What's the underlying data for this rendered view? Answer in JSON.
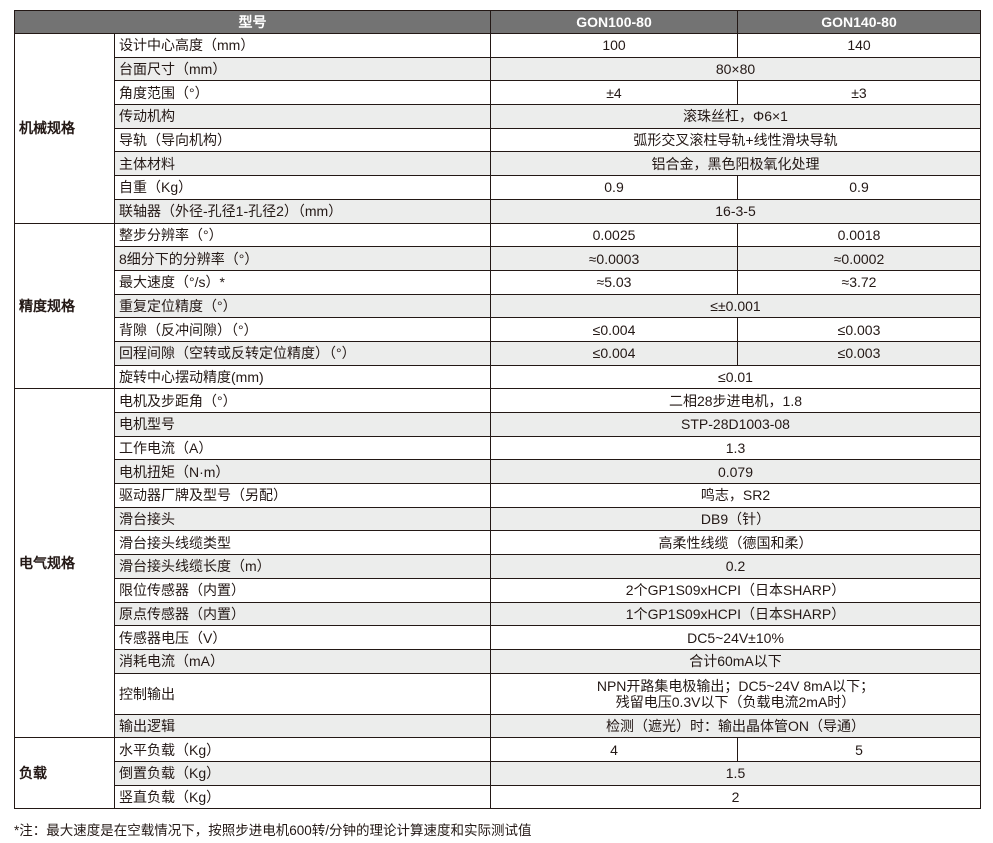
{
  "header": {
    "model": "型号",
    "col1": "GON100-80",
    "col2": "GON140-80"
  },
  "groups": [
    {
      "name": "机械规格",
      "rows": [
        {
          "label": "设计中心高度（mm）",
          "values": [
            "100",
            "140"
          ],
          "shaded": false
        },
        {
          "label": "台面尺寸（mm）",
          "values": [
            "80×80"
          ],
          "shaded": true
        },
        {
          "label": "角度范围（°）",
          "values": [
            "±4",
            "±3"
          ],
          "shaded": false
        },
        {
          "label": "传动机构",
          "values": [
            "滚珠丝杠，Φ6×1"
          ],
          "shaded": true
        },
        {
          "label": "导轨（导向机构）",
          "values": [
            "弧形交叉滚柱导轨+线性滑块导轨"
          ],
          "shaded": false
        },
        {
          "label": "主体材料",
          "values": [
            "铝合金，黑色阳极氧化处理"
          ],
          "shaded": true
        },
        {
          "label": "自重（Kg）",
          "values": [
            "0.9",
            "0.9"
          ],
          "shaded": false
        },
        {
          "label": "联轴器（外径-孔径1-孔径2）（mm）",
          "values": [
            "16-3-5"
          ],
          "shaded": true
        }
      ]
    },
    {
      "name": "精度规格",
      "rows": [
        {
          "label": "整步分辨率（°）",
          "values": [
            "0.0025",
            "0.0018"
          ],
          "shaded": false
        },
        {
          "label": "8细分下的分辨率（°）",
          "values": [
            "≈0.0003",
            "≈0.0002"
          ],
          "shaded": true
        },
        {
          "label": "最大速度（°/s）*",
          "values": [
            "≈5.03",
            "≈3.72"
          ],
          "shaded": false
        },
        {
          "label": "重复定位精度（°）",
          "values": [
            "≤±0.001"
          ],
          "shaded": true
        },
        {
          "label": "背隙（反冲间隙）（°）",
          "values": [
            "≤0.004",
            "≤0.003"
          ],
          "shaded": false
        },
        {
          "label": "回程间隙（空转或反转定位精度）（°）",
          "values": [
            "≤0.004",
            "≤0.003"
          ],
          "shaded": true
        },
        {
          "label": "旋转中心摆动精度(mm)",
          "values": [
            "≤0.01"
          ],
          "shaded": false
        }
      ]
    },
    {
      "name": "电气规格",
      "rows": [
        {
          "label": "电机及步距角（°）",
          "values": [
            "二相28步进电机，1.8"
          ],
          "shaded": false
        },
        {
          "label": "电机型号",
          "values": [
            "STP-28D1003-08"
          ],
          "shaded": true
        },
        {
          "label": "工作电流（A）",
          "values": [
            "1.3"
          ],
          "shaded": false
        },
        {
          "label": "电机扭矩（N·m）",
          "values": [
            "0.079"
          ],
          "shaded": true
        },
        {
          "label": "驱动器厂牌及型号（另配）",
          "values": [
            "鸣志，SR2"
          ],
          "shaded": false
        },
        {
          "label": "滑台接头",
          "values": [
            "DB9（针）"
          ],
          "shaded": true
        },
        {
          "label": "滑台接头线缆类型",
          "values": [
            "高柔性线缆（德国和柔）"
          ],
          "shaded": false
        },
        {
          "label": "滑台接头线缆长度（m）",
          "values": [
            "0.2"
          ],
          "shaded": true
        },
        {
          "label": "限位传感器（内置）",
          "values": [
            "2个GP1S09xHCPI（日本SHARP）"
          ],
          "shaded": false
        },
        {
          "label": "原点传感器（内置）",
          "values": [
            "1个GP1S09xHCPI（日本SHARP）"
          ],
          "shaded": true
        },
        {
          "label": "传感器电压（V）",
          "values": [
            "DC5~24V±10%"
          ],
          "shaded": false
        },
        {
          "label": "消耗电流（mA）",
          "values": [
            "合计60mA以下"
          ],
          "shaded": true
        },
        {
          "label": "控制输出",
          "values": [
            "NPN开路集电极输出；DC5~24V 8mA以下；\n残留电压0.3V以下（负载电流2mA时）"
          ],
          "shaded": false,
          "tall": true
        },
        {
          "label": "输出逻辑",
          "values": [
            "检测（遮光）时：输出晶体管ON（导通）"
          ],
          "shaded": true
        }
      ]
    },
    {
      "name": "负载",
      "rows": [
        {
          "label": "水平负载（Kg）",
          "values": [
            "4",
            "5"
          ],
          "shaded": false
        },
        {
          "label": "倒置负载（Kg）",
          "values": [
            "1.5"
          ],
          "shaded": true
        },
        {
          "label": "竖直负载（Kg）",
          "values": [
            "2"
          ],
          "shaded": false
        }
      ]
    }
  ],
  "footnote": "*注：最大速度是在空载情况下，按照步进电机600转/分钟的理论计算速度和实际测试值"
}
